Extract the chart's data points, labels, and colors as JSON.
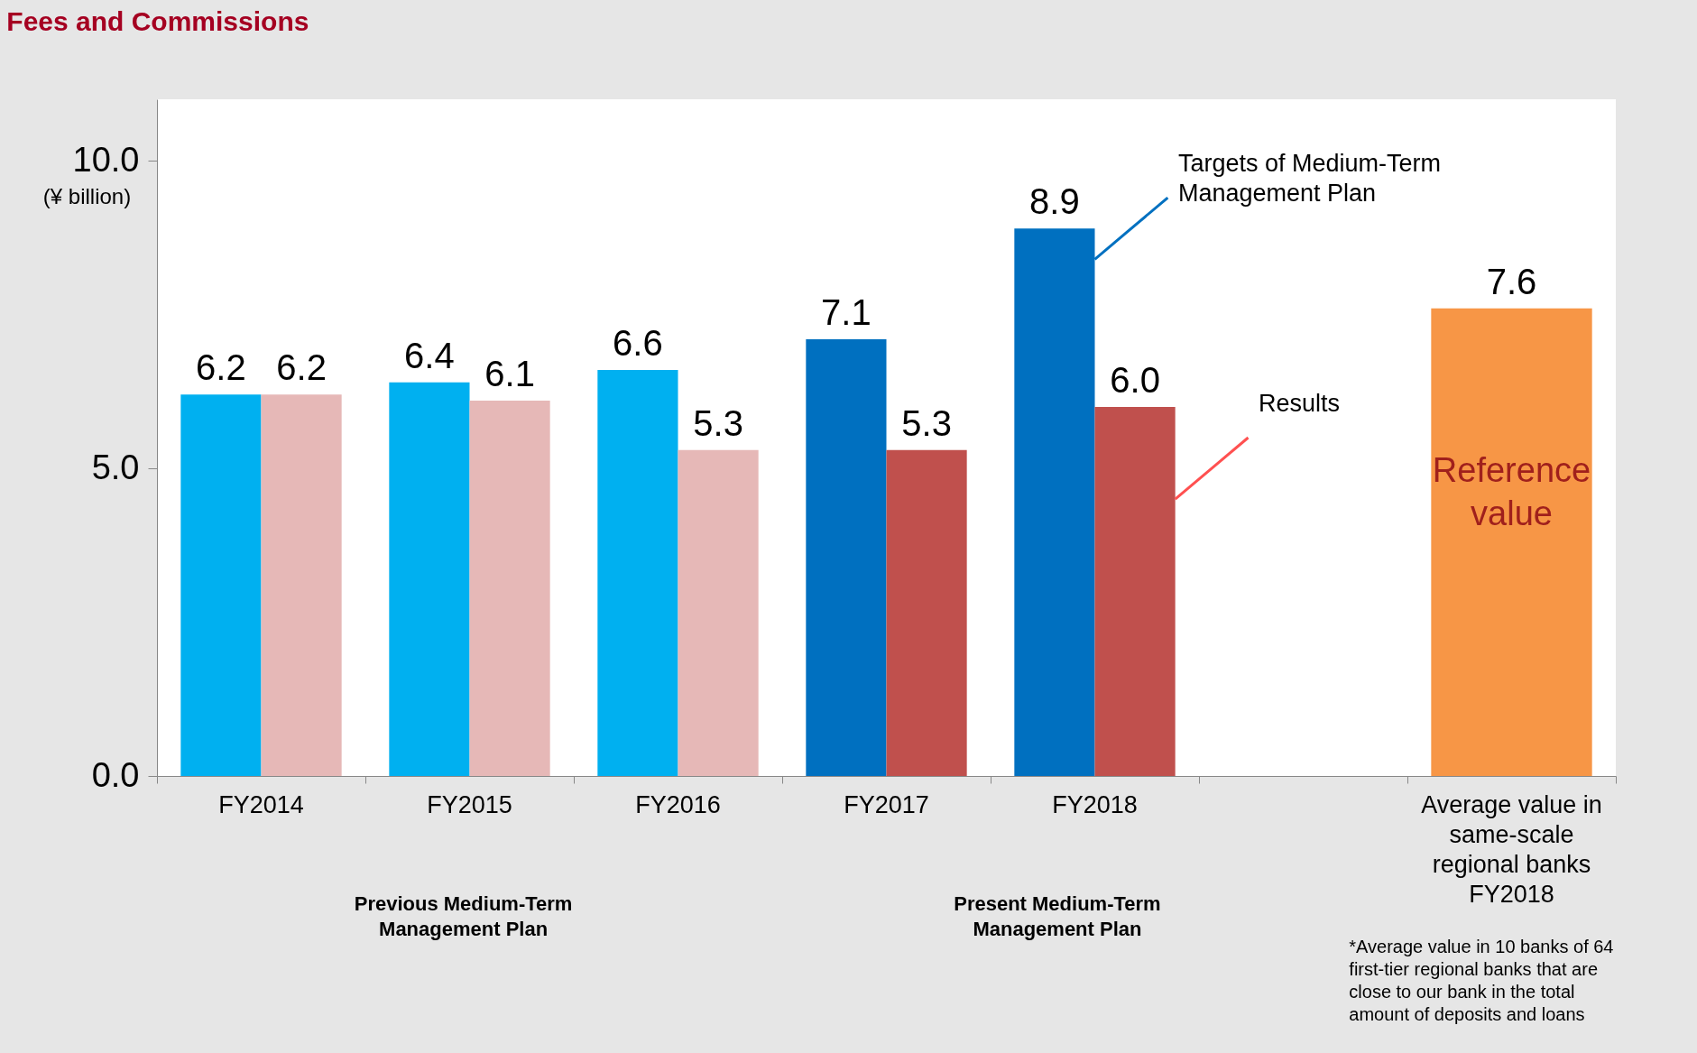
{
  "chart_data": {
    "type": "bar",
    "title": "Fees and Commissions",
    "ylabel": "(¥ billion)",
    "categories": [
      "FY2014",
      "FY2015",
      "FY2016",
      "FY2017",
      "FY2018",
      null,
      "Average value in same-scale regional banks FY2018"
    ],
    "series": [
      {
        "name": "Targets of Medium-Term Management Plan",
        "color": "#0070c0",
        "colors": [
          "#00b0f0",
          "#00b0f0",
          "#00b0f0",
          "#0070c0",
          "#0070c0",
          null,
          null
        ],
        "values": [
          6.2,
          6.4,
          6.6,
          7.1,
          8.9,
          null,
          null
        ],
        "value_labels": [
          "6.2",
          "6.4",
          "6.6",
          "7.1",
          "8.9",
          null,
          null
        ]
      },
      {
        "name": "Results",
        "color": "#ff5050",
        "colors": [
          "#e6b8b7",
          "#e6b8b7",
          "#e6b8b7",
          "#c0504d",
          "#c0504d",
          null,
          null
        ],
        "values": [
          6.2,
          6.1,
          5.3,
          5.3,
          6.0,
          null,
          null
        ],
        "value_labels": [
          "6.2",
          "6.1",
          "5.3",
          "5.3",
          "6.0",
          null,
          null
        ]
      },
      {
        "name": "Reference value",
        "color": "#f79646",
        "values": [
          null,
          null,
          null,
          null,
          null,
          null,
          7.6
        ],
        "value_labels": [
          null,
          null,
          null,
          null,
          null,
          null,
          "7.6"
        ]
      }
    ],
    "ylim": [
      0,
      11
    ],
    "yticks": [
      {
        "value": 0,
        "label": "0.0"
      },
      {
        "value": 5,
        "label": "5.0"
      },
      {
        "value": 10,
        "label": "10.0"
      }
    ],
    "grid": false,
    "annotations": [
      "Previous Medium-Term Management Plan",
      "Present Medium-Term Management Plan",
      "*Average value in 10 banks of 64 first-tier regional banks that are close to our bank in the total amount of deposits and loans"
    ]
  }
}
